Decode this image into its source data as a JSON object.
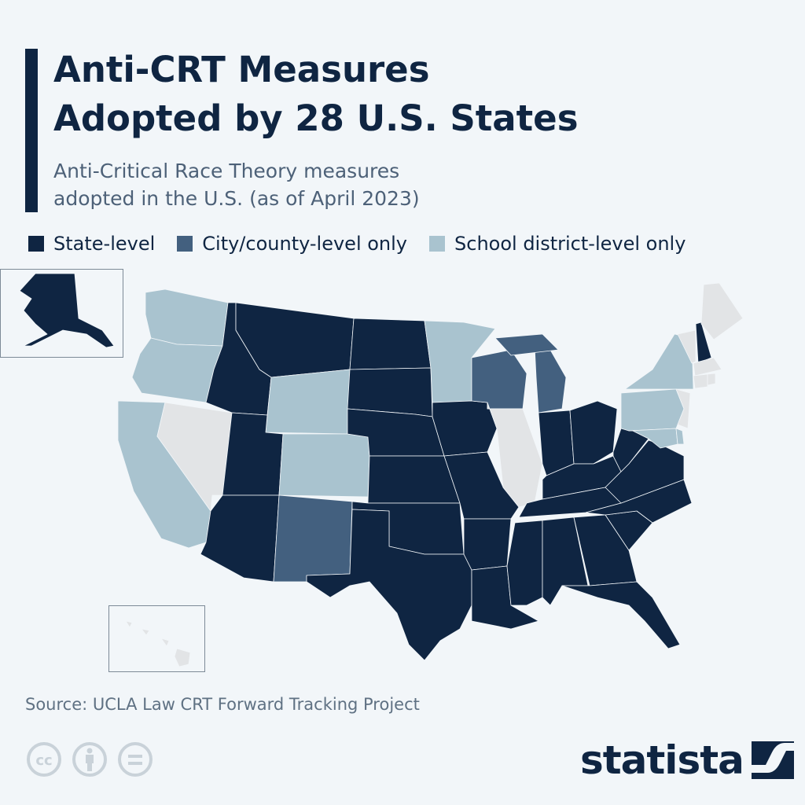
{
  "header": {
    "title_line1": "Anti-CRT Measures",
    "title_line2": "Adopted by 28 U.S. States",
    "subtitle_line1": "Anti-Critical Race Theory measures",
    "subtitle_line2": "adopted in the U.S. (as of April 2023)"
  },
  "legend": [
    {
      "label": "State-level",
      "color": "#0f2542"
    },
    {
      "label": "City/county-level only",
      "color": "#43607f"
    },
    {
      "label": "School district-level only",
      "color": "#a9c3cf"
    }
  ],
  "no_measure_color": "#e2e4e6",
  "states": {
    "WA": "school",
    "OR": "school",
    "CA": "school",
    "NV": "none",
    "ID": "state",
    "MT": "state",
    "WY": "school",
    "UT": "state",
    "CO": "school",
    "AZ": "state",
    "NM": "city",
    "ND": "state",
    "SD": "state",
    "NE": "state",
    "KS": "state",
    "OK": "state",
    "TX": "state",
    "MN": "school",
    "IA": "state",
    "MO": "state",
    "AR": "state",
    "LA": "state",
    "WI": "city",
    "IL": "none",
    "MI": "city",
    "IN": "state",
    "OH": "state",
    "KY": "state",
    "TN": "state",
    "MS": "state",
    "AL": "state",
    "GA": "state",
    "FL": "state",
    "SC": "state",
    "NC": "state",
    "VA": "state",
    "WV": "state",
    "PA": "school",
    "NY": "school",
    "MD": "school",
    "DE": "school",
    "NJ": "none",
    "VT": "none",
    "NH": "state",
    "ME": "none",
    "MA": "none",
    "CT": "none",
    "RI": "none",
    "AK": "state",
    "HI": "none"
  },
  "footer": {
    "source": "Source: UCLA Law CRT Forward Tracking Project",
    "brand": "statista"
  }
}
